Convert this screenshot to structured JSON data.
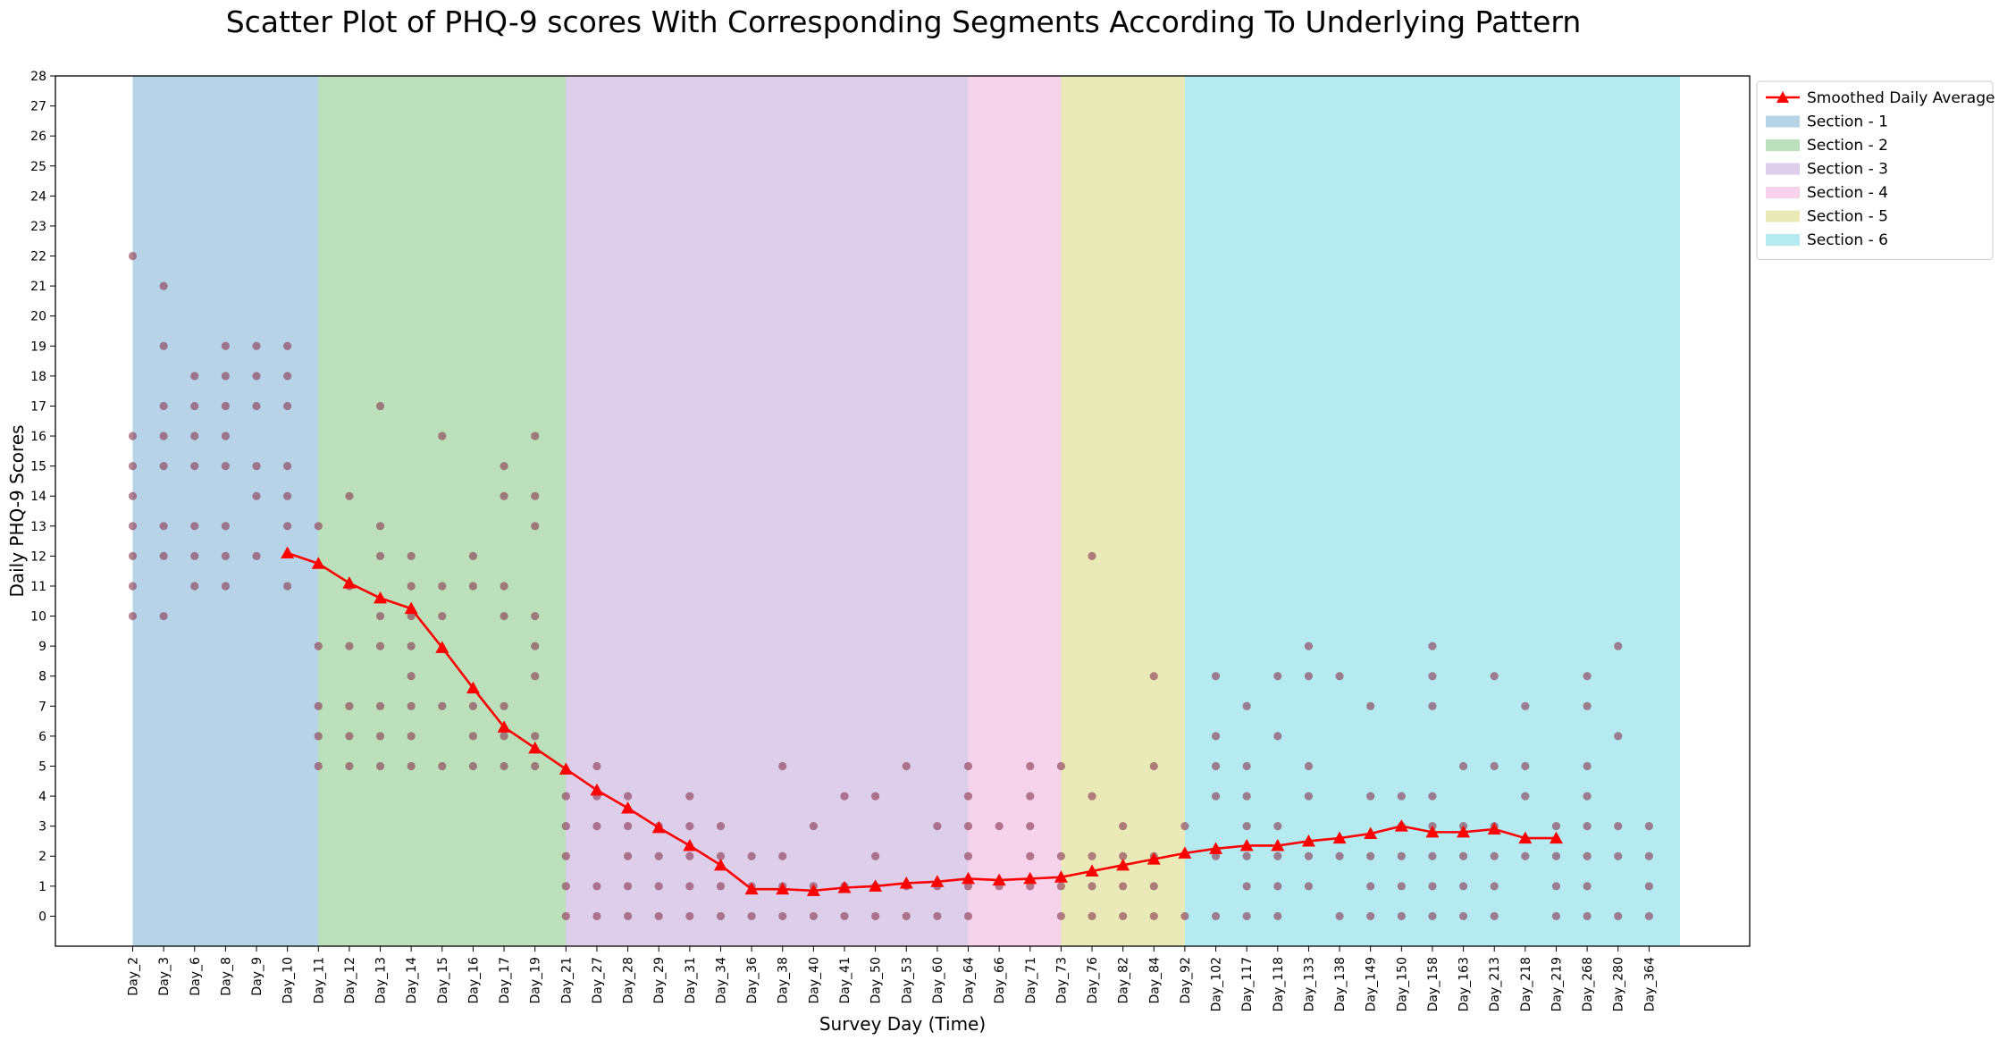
{
  "chart_data": {
    "type": "scatter",
    "title": "Scatter Plot of PHQ-9 scores With Corresponding Segments According To Underlying Pattern",
    "xlabel": "Survey Day (Time)",
    "ylabel": "Daily PHQ-9 Scores",
    "ylim": [
      -1,
      28
    ],
    "y_ticks": [
      0,
      1,
      2,
      3,
      4,
      5,
      6,
      7,
      8,
      9,
      10,
      11,
      12,
      13,
      14,
      15,
      16,
      17,
      18,
      19,
      20,
      21,
      22,
      23,
      24,
      25,
      26,
      27,
      28
    ],
    "categories": [
      "Day_2",
      "Day_3",
      "Day_6",
      "Day_8",
      "Day_9",
      "Day_10",
      "Day_11",
      "Day_12",
      "Day_13",
      "Day_14",
      "Day_15",
      "Day_16",
      "Day_17",
      "Day_19",
      "Day_21",
      "Day_27",
      "Day_28",
      "Day_29",
      "Day_31",
      "Day_34",
      "Day_36",
      "Day_38",
      "Day_40",
      "Day_41",
      "Day_50",
      "Day_53",
      "Day_60",
      "Day_64",
      "Day_66",
      "Day_71",
      "Day_73",
      "Day_76",
      "Day_82",
      "Day_84",
      "Day_92",
      "Day_102",
      "Day_117",
      "Day_118",
      "Day_133",
      "Day_138",
      "Day_149",
      "Day_150",
      "Day_158",
      "Day_163",
      "Day_213",
      "Day_218",
      "Day_219",
      "Day_268",
      "Day_280",
      "Day_364"
    ],
    "grid": false,
    "legend_placement": "outside-top-right",
    "sections": [
      {
        "name": "Section - 1",
        "start": "Day_2",
        "end": "Day_11",
        "color": "#1f77b4"
      },
      {
        "name": "Section - 2",
        "start": "Day_11",
        "end": "Day_21",
        "color": "#2ca02c"
      },
      {
        "name": "Section - 3",
        "start": "Day_21",
        "end": "Day_64",
        "color": "#9467bd"
      },
      {
        "name": "Section - 4",
        "start": "Day_64",
        "end": "Day_73",
        "color": "#e377c2"
      },
      {
        "name": "Section - 5",
        "start": "Day_73",
        "end": "Day_92",
        "color": "#bcbd22"
      },
      {
        "name": "Section - 6",
        "start": "Day_92",
        "end": "Day_364",
        "color": "#17becf"
      }
    ],
    "scatter_color": "#8b3a52",
    "scores": [
      [
        22,
        16,
        15,
        14,
        13,
        12,
        11,
        10
      ],
      [
        21,
        19,
        17,
        16,
        15,
        13,
        12,
        10
      ],
      [
        18,
        17,
        16,
        15,
        13,
        12,
        11
      ],
      [
        19,
        18,
        17,
        16,
        15,
        13,
        12,
        11
      ],
      [
        19,
        18,
        17,
        15,
        14,
        12
      ],
      [
        19,
        18,
        17,
        15,
        14,
        13,
        11
      ],
      [
        13,
        9,
        7,
        6,
        5
      ],
      [
        14,
        11,
        9,
        7,
        6,
        5
      ],
      [
        17,
        13,
        12,
        10,
        9,
        7,
        6,
        5
      ],
      [
        12,
        11,
        10,
        9,
        8,
        7,
        6,
        5
      ],
      [
        16,
        11,
        10,
        7,
        5
      ],
      [
        12,
        11,
        7,
        6,
        5
      ],
      [
        15,
        14,
        11,
        10,
        7,
        6,
        5
      ],
      [
        16,
        14,
        13,
        10,
        9,
        8,
        6,
        5
      ],
      [
        4,
        3,
        2,
        1,
        0
      ],
      [
        5,
        4,
        3,
        1,
        0
      ],
      [
        4,
        3,
        2,
        1,
        0
      ],
      [
        3,
        2,
        1,
        0
      ],
      [
        4,
        3,
        2,
        1,
        0
      ],
      [
        3,
        2,
        1,
        0
      ],
      [
        2,
        1,
        0
      ],
      [
        5,
        2,
        1,
        0
      ],
      [
        3,
        1,
        0
      ],
      [
        4,
        1,
        0
      ],
      [
        4,
        2,
        1,
        0
      ],
      [
        5,
        1,
        0
      ],
      [
        3,
        1,
        0
      ],
      [
        5,
        4,
        3,
        2,
        1,
        0
      ],
      [
        3,
        1
      ],
      [
        5,
        4,
        3,
        2,
        1
      ],
      [
        5,
        2,
        1,
        0
      ],
      [
        12,
        4,
        2,
        1,
        0
      ],
      [
        3,
        2,
        1,
        0
      ],
      [
        8,
        5,
        2,
        1,
        0
      ],
      [
        3,
        0
      ],
      [
        8,
        6,
        5,
        4,
        2,
        0
      ],
      [
        7,
        5,
        4,
        3,
        2,
        1,
        0
      ],
      [
        8,
        6,
        3,
        2,
        1,
        0
      ],
      [
        9,
        8,
        5,
        4,
        2,
        1
      ],
      [
        8,
        2,
        0
      ],
      [
        7,
        4,
        2,
        1,
        0
      ],
      [
        4,
        3,
        2,
        1,
        0
      ],
      [
        9,
        8,
        7,
        4,
        3,
        2,
        1,
        0
      ],
      [
        5,
        3,
        2,
        1,
        0
      ],
      [
        8,
        5,
        3,
        2,
        1,
        0
      ],
      [
        7,
        5,
        4,
        2
      ],
      [
        3,
        2,
        1,
        0
      ],
      [
        8,
        7,
        5,
        4,
        3,
        2,
        1,
        0
      ],
      [
        9,
        6,
        3,
        2,
        0
      ],
      [
        3,
        2,
        1,
        0
      ]
    ],
    "series": [
      {
        "name": "Smoothed Daily Average",
        "color": "#ff0000",
        "marker": "triangle",
        "x": [
          "Day_10",
          "Day_11",
          "Day_12",
          "Day_13",
          "Day_14",
          "Day_15",
          "Day_16",
          "Day_17",
          "Day_19",
          "Day_21",
          "Day_27",
          "Day_28",
          "Day_29",
          "Day_31",
          "Day_34",
          "Day_36",
          "Day_38",
          "Day_40",
          "Day_41",
          "Day_50",
          "Day_53",
          "Day_60",
          "Day_64",
          "Day_66",
          "Day_71",
          "Day_73",
          "Day_76",
          "Day_82",
          "Day_84",
          "Day_92",
          "Day_102",
          "Day_117",
          "Day_118",
          "Day_133",
          "Day_138",
          "Day_149",
          "Day_150",
          "Day_158",
          "Day_163",
          "Day_213",
          "Day_218",
          "Day_219"
        ],
        "values": [
          12.1,
          11.75,
          11.1,
          10.6,
          10.25,
          8.95,
          7.6,
          6.3,
          5.6,
          4.9,
          4.2,
          3.6,
          2.95,
          2.35,
          1.7,
          0.9,
          0.9,
          0.85,
          0.95,
          1.0,
          1.1,
          1.15,
          1.25,
          1.2,
          1.25,
          1.3,
          1.5,
          1.7,
          1.9,
          2.1,
          2.25,
          2.35,
          2.35,
          2.5,
          2.6,
          2.75,
          3.0,
          2.8,
          2.8,
          2.9,
          2.6,
          2.6
        ]
      }
    ]
  }
}
